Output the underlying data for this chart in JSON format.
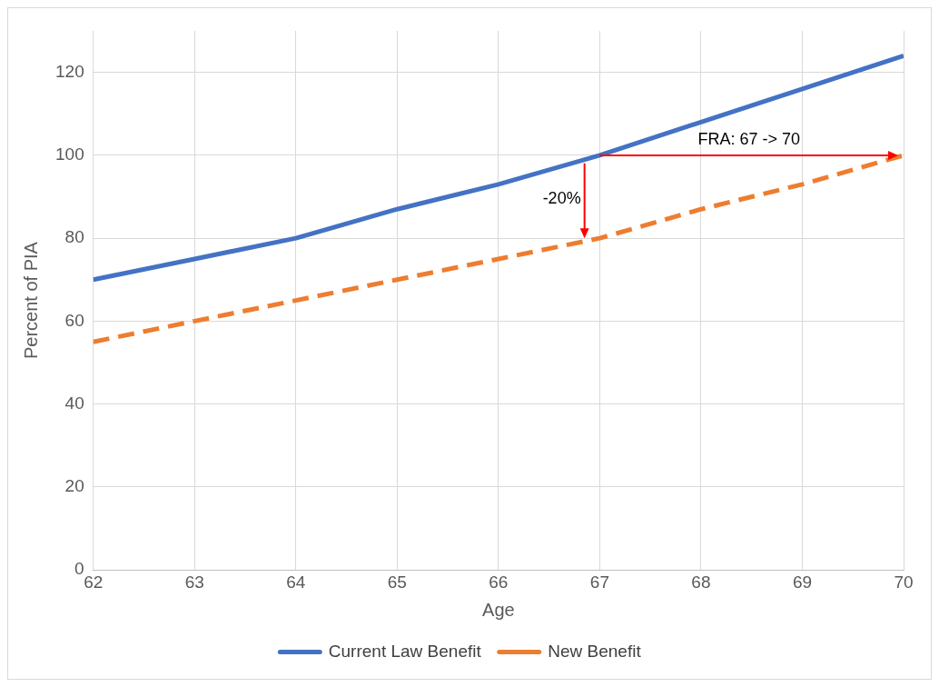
{
  "chart_data": {
    "type": "line",
    "xlabel": "Age",
    "ylabel": "Percent of PIA",
    "x": [
      62,
      63,
      64,
      65,
      66,
      67,
      68,
      69,
      70
    ],
    "series": [
      {
        "name": "Current Law Benefit",
        "color": "#4472c4",
        "line_style": "solid",
        "values": [
          70,
          75,
          80,
          87,
          93,
          100,
          108,
          116,
          124
        ]
      },
      {
        "name": "New Benefit",
        "color": "#ed7d31",
        "line_style": "dashed",
        "values": [
          55,
          60,
          65,
          70,
          75,
          80,
          87,
          93,
          100
        ]
      }
    ],
    "xlim": [
      62,
      70
    ],
    "xticks": [
      62,
      63,
      64,
      65,
      66,
      67,
      68,
      69,
      70
    ],
    "ylim": [
      0,
      130
    ],
    "yticks": [
      0,
      20,
      40,
      60,
      80,
      100,
      120
    ],
    "grid": true,
    "legend": "bottom",
    "marker": "none",
    "annotations": [
      {
        "text": "-20%",
        "x": 66.85,
        "y": 80
      },
      "FRA: 67 -> 70"
    ]
  }
}
